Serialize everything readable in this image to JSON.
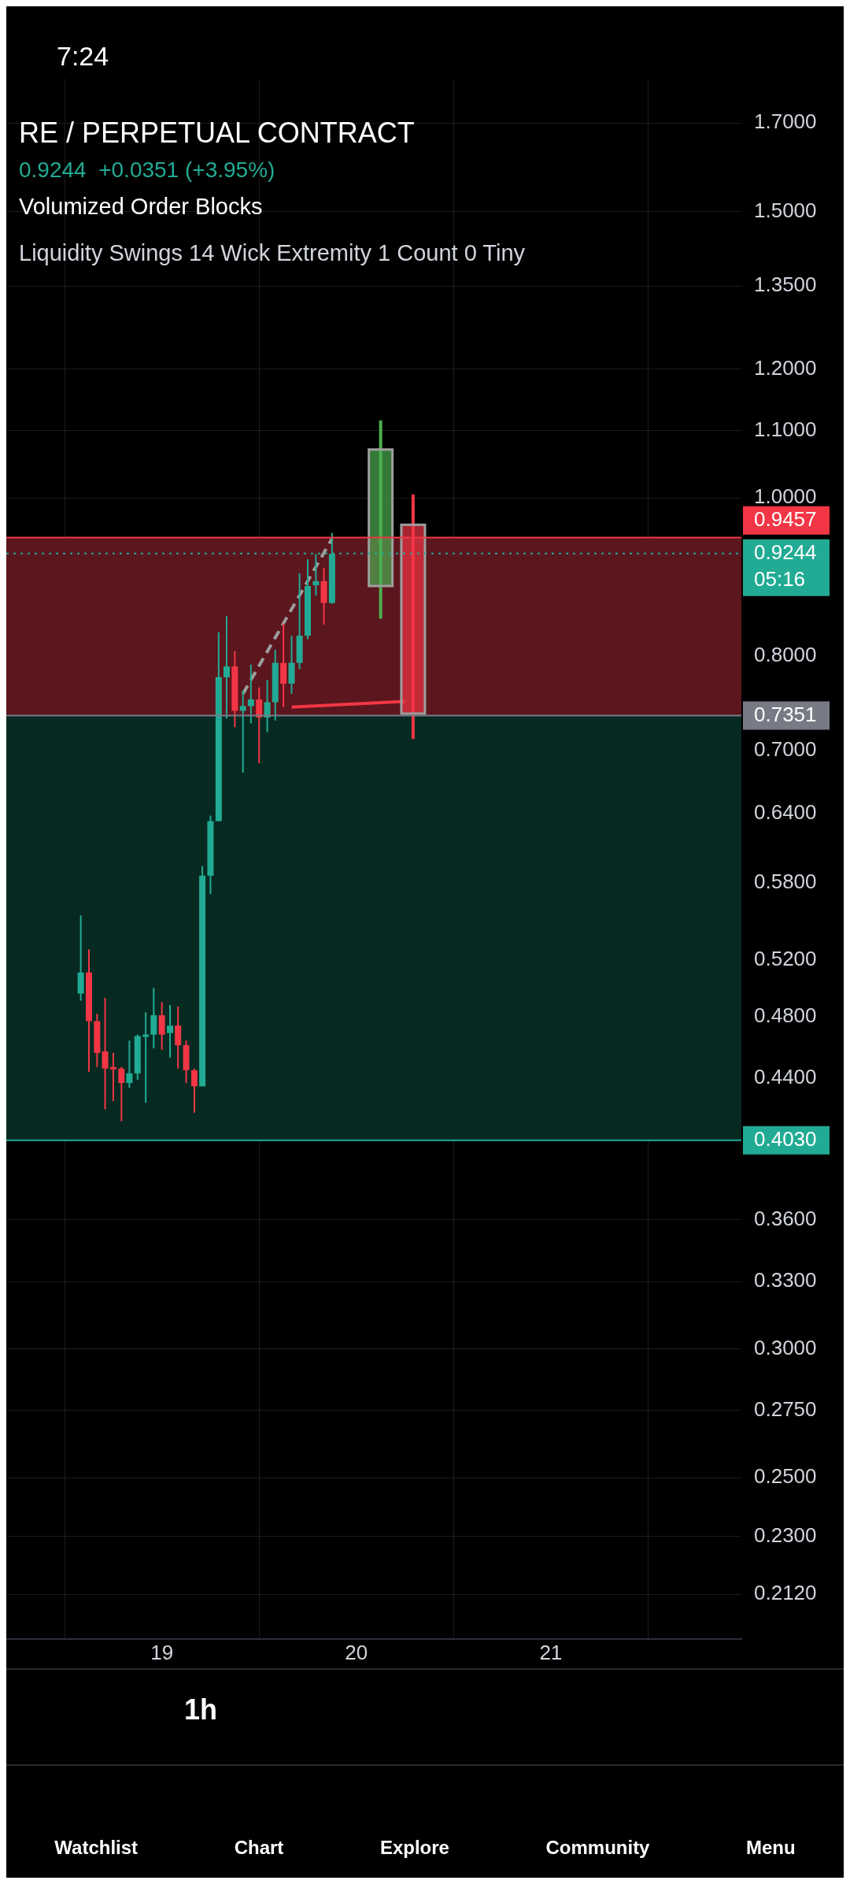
{
  "chart_data": {
    "type": "candlestick",
    "title": "RE / PERPETUAL CONTRACT",
    "subtitle": "0.9244  +0.0351 (+3.95%)",
    "annotations": [
      "Volumized Order Blocks",
      "Liquidity Swings 14 Wick Extremity 1 Count 0 Tiny",
      "7:24",
      "1h",
      "Watchlist",
      "Chart",
      "Explore",
      "Community",
      "Menu"
    ],
    "log": true,
    "grid": true,
    "legend": false,
    "xlim": [
      18.2,
      21.98
    ],
    "xticks": [
      19,
      20,
      21
    ],
    "ylim": [
      0.199,
      1.81
    ],
    "yticks": [
      {
        "value": 1.7,
        "label": "1.7000"
      },
      {
        "value": 1.5,
        "label": "1.5000"
      },
      {
        "value": 1.35,
        "label": "1.3500"
      },
      {
        "value": 1.2,
        "label": "1.2000"
      },
      {
        "value": 1.1,
        "label": "1.1000"
      },
      {
        "value": 1.0,
        "label": "1.0000"
      },
      {
        "value": 0.8,
        "label": "0.8000"
      },
      {
        "value": 0.7,
        "label": "0.7000"
      },
      {
        "value": 0.64,
        "label": "0.6400"
      },
      {
        "value": 0.58,
        "label": "0.5800"
      },
      {
        "value": 0.52,
        "label": "0.5200"
      },
      {
        "value": 0.48,
        "label": "0.4800"
      },
      {
        "value": 0.44,
        "label": "0.4400"
      },
      {
        "value": 0.36,
        "label": "0.3600"
      },
      {
        "value": 0.33,
        "label": "0.3300"
      },
      {
        "value": 0.3,
        "label": "0.3000"
      },
      {
        "value": 0.275,
        "label": "0.2750"
      },
      {
        "value": 0.25,
        "label": "0.2500"
      },
      {
        "value": 0.23,
        "label": "0.2300"
      },
      {
        "value": 0.212,
        "label": "0.2120"
      }
    ],
    "bands": [
      {
        "axis": "y",
        "from": 0.7351,
        "to": 0.9457,
        "color": "#5c161d"
      },
      {
        "axis": "y",
        "from": 0.403,
        "to": 0.7351,
        "color": "#062a22"
      }
    ],
    "ref_lines": [
      {
        "axis": "y",
        "value": 0.9457,
        "label": "0.9457",
        "color": "#f23645"
      },
      {
        "axis": "y",
        "value": 0.9244,
        "label": "0.9244\n05:16",
        "color": "#22ab94",
        "line_style": "dotted"
      },
      {
        "axis": "y",
        "value": 0.7351,
        "label": "0.7351",
        "color": "#787b86",
        "line_style": "solid"
      },
      {
        "axis": "y",
        "value": 0.403,
        "label": "0.4030",
        "color": "#22ab94"
      }
    ],
    "series": [
      {
        "x": [
          18.583,
          18.625,
          18.667,
          18.708,
          18.75,
          18.792,
          18.833,
          18.875,
          18.917,
          18.958,
          19,
          19.042,
          19.083,
          19.125,
          19.167,
          19.208,
          19.25,
          19.292,
          19.333,
          19.375,
          19.417,
          19.458,
          19.5,
          19.542,
          19.583,
          19.625,
          19.667,
          19.708,
          19.75,
          19.792,
          19.833,
          19.875
        ],
        "ohlc": [
          [
            0.496,
            0.554,
            0.491,
            0.511
          ],
          [
            0.511,
            0.528,
            0.444,
            0.477
          ],
          [
            0.477,
            0.482,
            0.447,
            0.456
          ],
          [
            0.457,
            0.493,
            0.421,
            0.446
          ],
          [
            0.447,
            0.456,
            0.426,
            0.446
          ],
          [
            0.446,
            0.447,
            0.414,
            0.437
          ],
          [
            0.437,
            0.464,
            0.434,
            0.443
          ],
          [
            0.443,
            0.468,
            0.439,
            0.467
          ],
          [
            0.467,
            0.483,
            0.425,
            0.468
          ],
          [
            0.468,
            0.5,
            0.459,
            0.481
          ],
          [
            0.481,
            0.49,
            0.458,
            0.468
          ],
          [
            0.469,
            0.488,
            0.453,
            0.474
          ],
          [
            0.474,
            0.487,
            0.446,
            0.461
          ],
          [
            0.461,
            0.464,
            0.437,
            0.445
          ],
          [
            0.445,
            0.446,
            0.419,
            0.435
          ],
          [
            0.435,
            0.594,
            0.435,
            0.586
          ],
          [
            0.586,
            0.638,
            0.571,
            0.633
          ],
          [
            0.633,
            0.827,
            0.633,
            0.776
          ],
          [
            0.776,
            0.846,
            0.732,
            0.788
          ],
          [
            0.788,
            0.805,
            0.723,
            0.74
          ],
          [
            0.74,
            0.762,
            0.678,
            0.745
          ],
          [
            0.745,
            0.79,
            0.727,
            0.752
          ],
          [
            0.752,
            0.765,
            0.687,
            0.733
          ],
          [
            0.733,
            0.773,
            0.718,
            0.749
          ],
          [
            0.749,
            0.807,
            0.73,
            0.792
          ],
          [
            0.792,
            0.837,
            0.744,
            0.769
          ],
          [
            0.769,
            0.823,
            0.758,
            0.792
          ],
          [
            0.792,
            0.899,
            0.785,
            0.823
          ],
          [
            0.823,
            0.917,
            0.819,
            0.883
          ],
          [
            0.884,
            0.924,
            0.871,
            0.889
          ],
          [
            0.889,
            0.906,
            0.836,
            0.862
          ],
          [
            0.862,
            0.952,
            0.861,
            0.924
          ]
        ],
        "colors": [
          "#22ab94",
          "#f23645",
          "#f23645",
          "#f23645",
          "#f23645",
          "#f23645",
          "#22ab94",
          "#22ab94",
          "#22ab94",
          "#22ab94",
          "#f23645",
          "#22ab94",
          "#f23645",
          "#f23645",
          "#f23645",
          "#22ab94",
          "#22ab94",
          "#22ab94",
          "#22ab94",
          "#f23645",
          "#22ab94",
          "#22ab94",
          "#f23645",
          "#22ab94",
          "#22ab94",
          "#f23645",
          "#22ab94",
          "#22ab94",
          "#22ab94",
          "#22ab94",
          "#f23645",
          "#22ab94"
        ]
      },
      {
        "x": [
          20.125,
          20.292
        ],
        "ohlc": [
          [
            0.883,
            1.116,
            0.843,
            1.071
          ],
          [
            0.963,
            1.005,
            0.711,
            0.737
          ]
        ],
        "colors": [
          "#4caf50",
          "#f23645"
        ]
      },
      {
        "type": "line",
        "x": [
          19.667,
          20.25
        ],
        "values": [
          0.744,
          0.75
        ],
        "color": "#f23645"
      },
      {
        "type": "line",
        "x": [
          19.417,
          19.875
        ],
        "values": [
          0.758,
          0.944
        ],
        "color": "#9e9e9e",
        "line_style": "dashed"
      }
    ]
  }
}
